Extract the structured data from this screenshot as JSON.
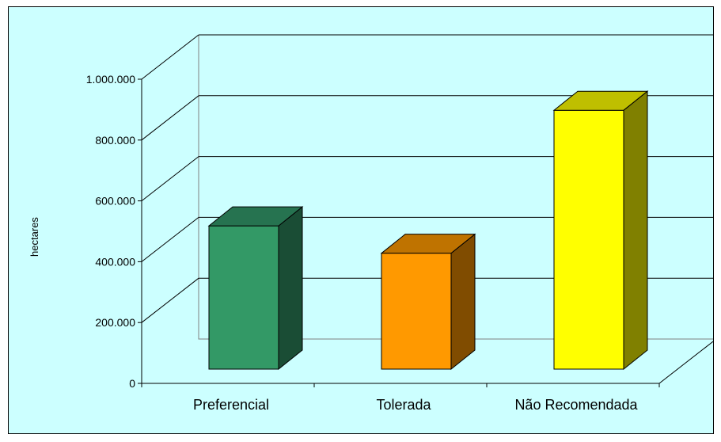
{
  "chart_data": {
    "type": "bar",
    "title": "",
    "xlabel": "",
    "ylabel": "hectares",
    "ylim": [
      0,
      1000000
    ],
    "yticks": [
      {
        "value": 0,
        "label": "0"
      },
      {
        "value": 200000,
        "label": "200.000"
      },
      {
        "value": 400000,
        "label": "400.000"
      },
      {
        "value": 600000,
        "label": "600.000"
      },
      {
        "value": 800000,
        "label": "800.000"
      },
      {
        "value": 1000000,
        "label": "1.000.000"
      }
    ],
    "categories": [
      "Preferencial",
      "Tolerada",
      "Não Recomendada"
    ],
    "values": [
      445000,
      355000,
      825000
    ],
    "colors": [
      {
        "front": "#339966",
        "top": "#267350",
        "side": "#1a4d35"
      },
      {
        "front": "#ff9900",
        "top": "#bf7300",
        "side": "#804c00"
      },
      {
        "front": "#ffff00",
        "top": "#bfbf00",
        "side": "#808000"
      }
    ],
    "background": "#ccffff",
    "grid": true,
    "legend": "none"
  }
}
